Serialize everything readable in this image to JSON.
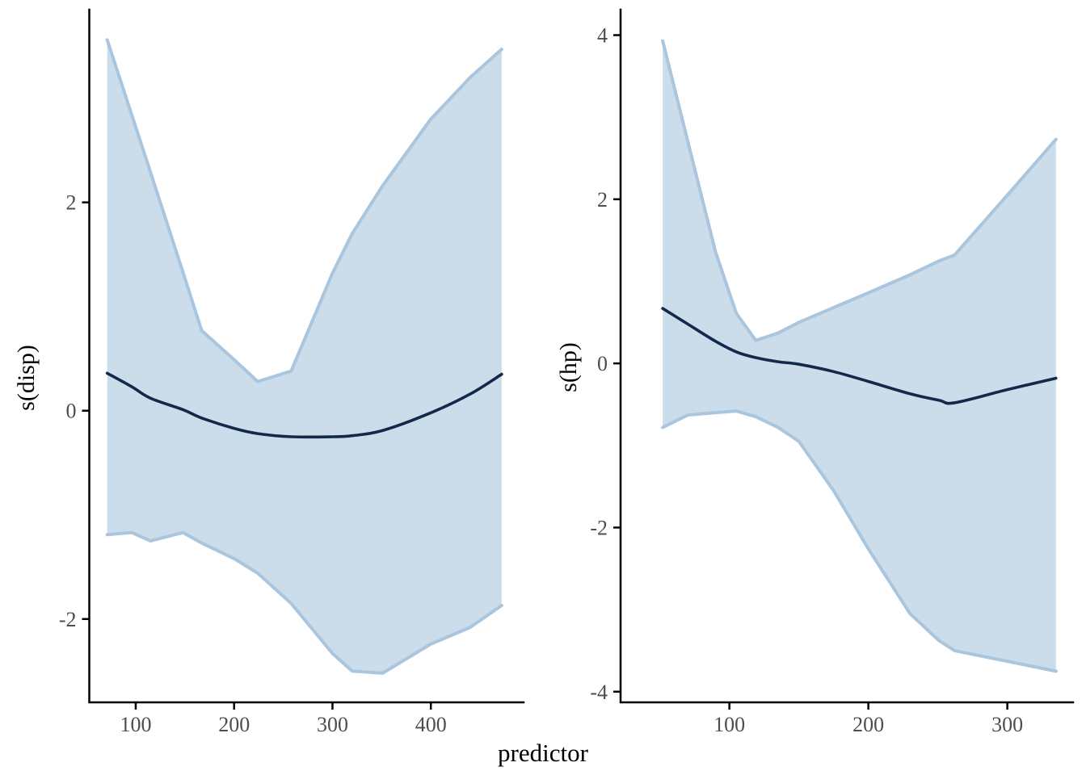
{
  "chart_data": {
    "type": "area",
    "description": "Two-panel GAM partial-effect plot with smooth estimate lines and confidence ribbons",
    "xlabel": "predictor",
    "grid": false,
    "legend": null,
    "colors": {
      "background": "#ffffff",
      "ribbon_fill": "#cbdcea",
      "ribbon_edge": "#a9c6de",
      "smooth_line": "#12294b",
      "axis": "#000000",
      "tick_label": "#4d4d4d",
      "axis_title": "#000000"
    },
    "panels": [
      {
        "ylabel": "s(disp)",
        "x_ticks": [
          100,
          200,
          300,
          400
        ],
        "y_ticks": [
          2,
          0,
          -2
        ],
        "xlim": [
          52.8,
          494.3
        ],
        "ylim": [
          -2.8,
          3.85
        ],
        "x": [
          71,
          96,
          115,
          148,
          167,
          200,
          224,
          258,
          300,
          320,
          351,
          400,
          440,
          472
        ],
        "smooth": [
          0.36,
          0.23,
          0.12,
          0.01,
          -0.07,
          -0.17,
          -0.22,
          -0.25,
          -0.25,
          -0.24,
          -0.19,
          -0.02,
          0.16,
          0.35
        ],
        "upper": [
          3.56,
          2.84,
          2.29,
          1.33,
          0.77,
          0.49,
          0.28,
          0.38,
          1.32,
          1.7,
          2.16,
          2.8,
          3.2,
          3.47
        ],
        "lower": [
          -1.19,
          -1.17,
          -1.25,
          -1.17,
          -1.27,
          -1.42,
          -1.56,
          -1.85,
          -2.33,
          -2.5,
          -2.52,
          -2.24,
          -2.08,
          -1.87
        ]
      },
      {
        "ylabel": "s(hp)",
        "x_ticks": [
          100,
          200,
          300
        ],
        "y_ticks": [
          4,
          2,
          0,
          -2,
          -4
        ],
        "xlim": [
          21.7,
          347.3
        ],
        "ylim": [
          -4.13,
          4.31
        ],
        "x": [
          52,
          70,
          90,
          105,
          119,
          135,
          150,
          175,
          200,
          230,
          251,
          262,
          300,
          335
        ],
        "smooth": [
          0.67,
          0.48,
          0.27,
          0.14,
          0.07,
          0.02,
          -0.01,
          -0.1,
          -0.22,
          -0.37,
          -0.45,
          -0.48,
          -0.32,
          -0.18
        ],
        "upper": [
          3.93,
          2.71,
          1.36,
          0.61,
          0.28,
          0.37,
          0.5,
          0.68,
          0.86,
          1.08,
          1.25,
          1.32,
          2.05,
          2.73
        ],
        "lower": [
          -0.78,
          -0.63,
          -0.6,
          -0.58,
          -0.65,
          -0.78,
          -0.95,
          -1.55,
          -2.26,
          -3.05,
          -3.38,
          -3.5,
          -3.63,
          -3.75
        ]
      }
    ]
  }
}
